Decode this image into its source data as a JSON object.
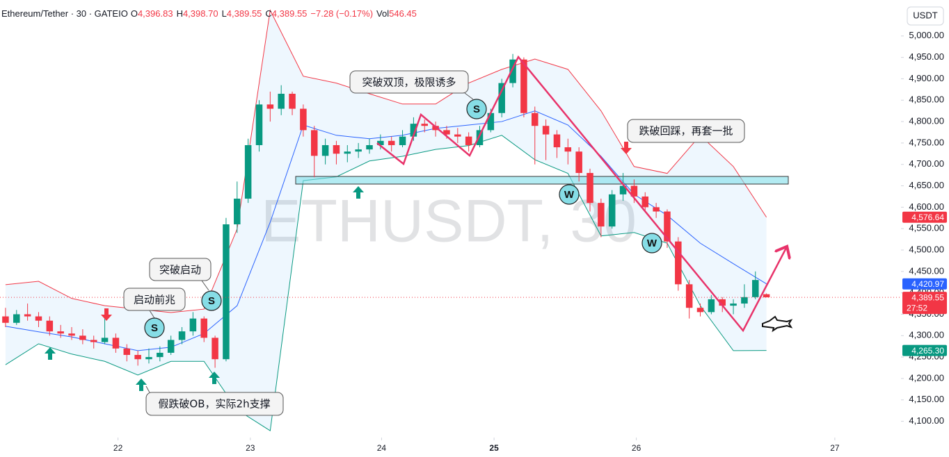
{
  "header": {
    "symbol": "Ethereum/Tether · 30 · GATEIO",
    "ohlc": [
      {
        "key": "O",
        "value": "4,396.83"
      },
      {
        "key": "H",
        "value": "4,398.70"
      },
      {
        "key": "L",
        "value": "4,389.55"
      },
      {
        "key": "C",
        "value": "4,389.55"
      }
    ],
    "change": "−7.28 (−0.17%)",
    "volume_key": "Vol",
    "volume": "546.45"
  },
  "currency": "USDT",
  "watermark": "ETHUSDT, 30",
  "annotations": [
    "启动前兆",
    "突破启动",
    "突破双顶，极限诱多",
    "跌破回踩，再套一批",
    "假跌破OB，实际2h支撑"
  ],
  "markers": [
    "S",
    "S",
    "S",
    "W",
    "W"
  ],
  "chart_data": {
    "type": "candlestick",
    "up_color": "#089981",
    "down_color": "#f23645",
    "open": [
      4345,
      4330,
      4350,
      4345,
      4335,
      4310,
      4305,
      4300,
      4290,
      4285,
      4295,
      4270,
      4255,
      4245,
      4250,
      4260,
      4290,
      4310,
      4340,
      4295,
      4245,
      4560,
      4620,
      4745,
      4840,
      4830,
      4865,
      4830,
      4780,
      4720,
      4745,
      4725,
      4730,
      4735,
      4745,
      4755,
      4745,
      4765,
      4795,
      4790,
      4780,
      4770,
      4765,
      4745,
      4780,
      4820,
      4890,
      4945,
      4820,
      4790,
      4770,
      4740,
      4730,
      4680,
      4610,
      4555,
      4630,
      4650,
      4625,
      4600,
      4590,
      4520,
      4420,
      4365,
      4355,
      4385,
      4370,
      4375,
      4390,
      4396.83
    ],
    "high": [
      4365,
      4360,
      4375,
      4355,
      4345,
      4325,
      4320,
      4315,
      4300,
      4345,
      4305,
      4280,
      4265,
      4270,
      4275,
      4300,
      4320,
      4355,
      4345,
      4300,
      4575,
      4660,
      4760,
      4850,
      4870,
      4885,
      4870,
      4840,
      4790,
      4760,
      4755,
      4745,
      4750,
      4760,
      4770,
      4765,
      4780,
      4810,
      4805,
      4800,
      4790,
      4785,
      4775,
      4790,
      4830,
      4900,
      4958,
      4950,
      4835,
      4805,
      4780,
      4760,
      4740,
      4690,
      4620,
      4640,
      4680,
      4665,
      4635,
      4610,
      4595,
      4530,
      4430,
      4375,
      4395,
      4390,
      4385,
      4420,
      4450,
      4398.7
    ],
    "low": [
      4320,
      4325,
      4335,
      4320,
      4300,
      4295,
      4290,
      4280,
      4270,
      4280,
      4260,
      4240,
      4230,
      4235,
      4240,
      4255,
      4280,
      4300,
      4285,
      4225,
      4240,
      4540,
      4610,
      4730,
      4800,
      4815,
      4815,
      4765,
      4670,
      4700,
      4700,
      4705,
      4715,
      4725,
      4735,
      4730,
      4740,
      4755,
      4775,
      4765,
      4760,
      4750,
      4730,
      4740,
      4775,
      4810,
      4880,
      4810,
      4700,
      4710,
      4715,
      4700,
      4660,
      4590,
      4530,
      4550,
      4615,
      4610,
      4590,
      4575,
      4505,
      4405,
      4340,
      4345,
      4350,
      4355,
      4350,
      4365,
      4385,
      4389.55
    ],
    "close": [
      4330,
      4350,
      4345,
      4335,
      4310,
      4305,
      4300,
      4290,
      4285,
      4295,
      4270,
      4255,
      4245,
      4250,
      4260,
      4290,
      4310,
      4340,
      4295,
      4245,
      4560,
      4620,
      4745,
      4840,
      4830,
      4865,
      4830,
      4780,
      4720,
      4745,
      4725,
      4730,
      4735,
      4745,
      4755,
      4745,
      4765,
      4795,
      4790,
      4780,
      4770,
      4765,
      4745,
      4780,
      4820,
      4890,
      4945,
      4820,
      4790,
      4770,
      4740,
      4730,
      4680,
      4610,
      4555,
      4630,
      4650,
      4625,
      4600,
      4590,
      4520,
      4420,
      4365,
      4355,
      4385,
      4370,
      4375,
      4390,
      4430,
      4389.55
    ],
    "bands": {
      "x": [
        0,
        3,
        6,
        9,
        12,
        15,
        18,
        21,
        24,
        27,
        30,
        33,
        36,
        39,
        42,
        45,
        48,
        51,
        54,
        57,
        60,
        63,
        66,
        69
      ],
      "upper": [
        4419,
        4427,
        4387,
        4370,
        4362,
        4354,
        4362,
        4549,
        5060,
        4906,
        4890,
        4865,
        4841,
        4841,
        4890,
        4922,
        4946,
        4922,
        4825,
        4695,
        4679,
        4768,
        4695,
        4576.64
      ],
      "middle": [
        4322,
        4309,
        4297,
        4281,
        4265,
        4273,
        4305,
        4370,
        4565,
        4792,
        4768,
        4760,
        4768,
        4784,
        4792,
        4800,
        4825,
        4792,
        4719,
        4630,
        4581,
        4516,
        4468,
        4420.97
      ],
      "lower": [
        4232,
        4281,
        4257,
        4240,
        4208,
        4240,
        4240,
        4127,
        4078,
        4662,
        4671,
        4708,
        4719,
        4735,
        4744,
        4768,
        4711,
        4679,
        4533,
        4541,
        4516,
        4370,
        4265,
        4265.3
      ],
      "upper_color": "#f23645",
      "middle_color": "#2962ff",
      "lower_color": "#089981",
      "fill": "rgba(33,150,243,0.08)"
    },
    "price_labels": [
      {
        "value": 4576.64,
        "label": "4,576.64",
        "color": "#f23645"
      },
      {
        "value": 4420.97,
        "label": "4,420.97",
        "color": "#2962ff"
      },
      {
        "value": 4389.55,
        "label": "4,389.55",
        "color": "#f23645"
      },
      {
        "value": 4265.3,
        "label": "4,265.30",
        "color": "#089981"
      }
    ],
    "countdown": "27:52",
    "xlim": [
      -0.5,
      81.2
    ],
    "xticks": [
      {
        "value": 10.2,
        "label": "22"
      },
      {
        "value": 22.2,
        "label": "23"
      },
      {
        "value": 34.1,
        "label": "24"
      },
      {
        "value": 44.3,
        "label": "25"
      },
      {
        "value": 57.2,
        "label": "26"
      },
      {
        "value": 75.2,
        "label": "27"
      }
    ],
    "ylim": [
      4062,
      5084
    ],
    "yticks": [
      {
        "value": 4100,
        "label": "4,100.00"
      },
      {
        "value": 4150,
        "label": "4,150.00"
      },
      {
        "value": 4200,
        "label": "4,200.00"
      },
      {
        "value": 4250,
        "label": "4,250.00"
      },
      {
        "value": 4300,
        "label": "4,300.00"
      },
      {
        "value": 4350,
        "label": "4,350.00"
      },
      {
        "value": 4400,
        "label": "4,400.00"
      },
      {
        "value": 4450,
        "label": "4,450.00"
      },
      {
        "value": 4500,
        "label": "4,500.00"
      },
      {
        "value": 4550,
        "label": "4,550.00"
      },
      {
        "value": 4600,
        "label": "4,600.00"
      },
      {
        "value": 4650,
        "label": "4,650.00"
      },
      {
        "value": 4700,
        "label": "4,700.00"
      },
      {
        "value": 4750,
        "label": "4,750.00"
      },
      {
        "value": 4800,
        "label": "4,800.00"
      },
      {
        "value": 4850,
        "label": "4,850.00"
      },
      {
        "value": 4900,
        "label": "4,900.00"
      },
      {
        "value": 4950,
        "label": "4,950.00"
      },
      {
        "value": 5000,
        "label": "5,000.00"
      }
    ],
    "grid": false
  }
}
